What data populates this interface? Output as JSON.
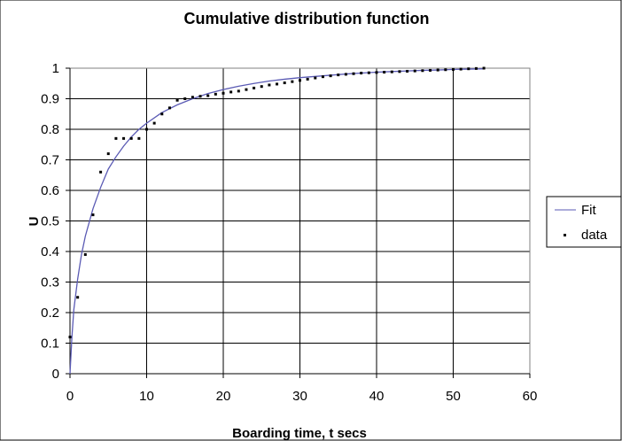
{
  "chart_data": {
    "type": "scatter",
    "title": "Cumulative distribution function",
    "xlabel": "Boarding time, t secs",
    "ylabel": "U",
    "xlim": [
      0,
      60
    ],
    "ylim": [
      0,
      1
    ],
    "xticks": [
      "0",
      "10",
      "20",
      "30",
      "40",
      "50",
      "60"
    ],
    "yticks": [
      "0",
      "0.1",
      "0.2",
      "0.3",
      "0.4",
      "0.5",
      "0.6",
      "0.7",
      "0.8",
      "0.9",
      "1"
    ],
    "grid": true,
    "legend_position": "right",
    "series": [
      {
        "name": "Fit",
        "kind": "line",
        "color": "#5a5ab4",
        "x": [
          0,
          0.25,
          0.5,
          1,
          1.5,
          2,
          3,
          4,
          5,
          6,
          7,
          8,
          9,
          10,
          12,
          14,
          16,
          18,
          20,
          22,
          24,
          26,
          28,
          30,
          32,
          34,
          36,
          38,
          40,
          42,
          44,
          46,
          48,
          50,
          52,
          54
        ],
        "y": [
          0,
          0.12,
          0.21,
          0.31,
          0.39,
          0.45,
          0.54,
          0.61,
          0.67,
          0.71,
          0.745,
          0.775,
          0.8,
          0.82,
          0.855,
          0.88,
          0.9,
          0.917,
          0.93,
          0.941,
          0.95,
          0.958,
          0.964,
          0.969,
          0.973,
          0.977,
          0.981,
          0.984,
          0.987,
          0.989,
          0.991,
          0.993,
          0.994,
          0.996,
          0.997,
          0.998
        ]
      },
      {
        "name": "data",
        "kind": "points",
        "color": "#000000",
        "x": [
          0,
          1,
          2,
          3,
          4,
          5,
          6,
          7,
          8,
          9,
          10,
          11,
          12,
          13,
          14,
          15,
          16,
          17,
          18,
          19,
          20,
          21,
          22,
          23,
          24,
          25,
          26,
          27,
          28,
          29,
          30,
          31,
          32,
          33,
          34,
          35,
          36,
          37,
          38,
          39,
          40,
          41,
          42,
          43,
          44,
          45,
          46,
          47,
          48,
          49,
          50,
          51,
          52,
          53,
          54
        ],
        "y": [
          0.12,
          0.25,
          0.39,
          0.52,
          0.66,
          0.72,
          0.77,
          0.77,
          0.77,
          0.77,
          0.8,
          0.82,
          0.85,
          0.87,
          0.895,
          0.9,
          0.905,
          0.908,
          0.91,
          0.915,
          0.918,
          0.922,
          0.925,
          0.93,
          0.935,
          0.94,
          0.945,
          0.948,
          0.952,
          0.956,
          0.96,
          0.964,
          0.968,
          0.972,
          0.975,
          0.978,
          0.98,
          0.982,
          0.984,
          0.985,
          0.986,
          0.987,
          0.988,
          0.989,
          0.99,
          0.991,
          0.992,
          0.993,
          0.994,
          0.995,
          0.996,
          0.997,
          0.998,
          0.999,
          1.0
        ]
      }
    ]
  }
}
